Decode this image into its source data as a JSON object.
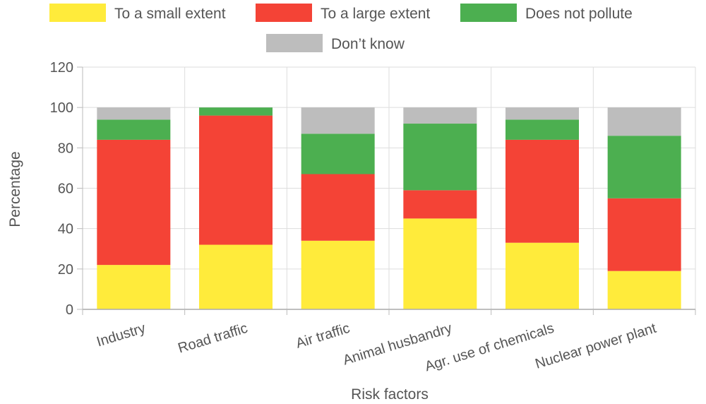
{
  "chart_data": {
    "type": "bar",
    "stacked": true,
    "title": "",
    "xlabel": "Risk factors",
    "ylabel": "Percentage",
    "ylim": [
      0,
      120
    ],
    "yticks": [
      0,
      20,
      40,
      60,
      80,
      100,
      120
    ],
    "grid": true,
    "legend_position": "top",
    "categories": [
      "Industry",
      "Road traffic",
      "Air traffic",
      "Animal husbandry",
      "Agr. use of chemicals",
      "Nuclear power plant"
    ],
    "series": [
      {
        "name": "To a small extent",
        "color": "#ffeb3b",
        "values": [
          22,
          32,
          34,
          45,
          33,
          19
        ]
      },
      {
        "name": "To a large extent",
        "color": "#f44336",
        "values": [
          62,
          64,
          33,
          14,
          51,
          36
        ]
      },
      {
        "name": "Does not pollute",
        "color": "#4caf50",
        "values": [
          10,
          4,
          20,
          33,
          10,
          31
        ]
      },
      {
        "name": "Don’t know",
        "color": "#bdbdbd",
        "values": [
          6,
          0,
          13,
          8,
          6,
          14
        ]
      }
    ]
  }
}
